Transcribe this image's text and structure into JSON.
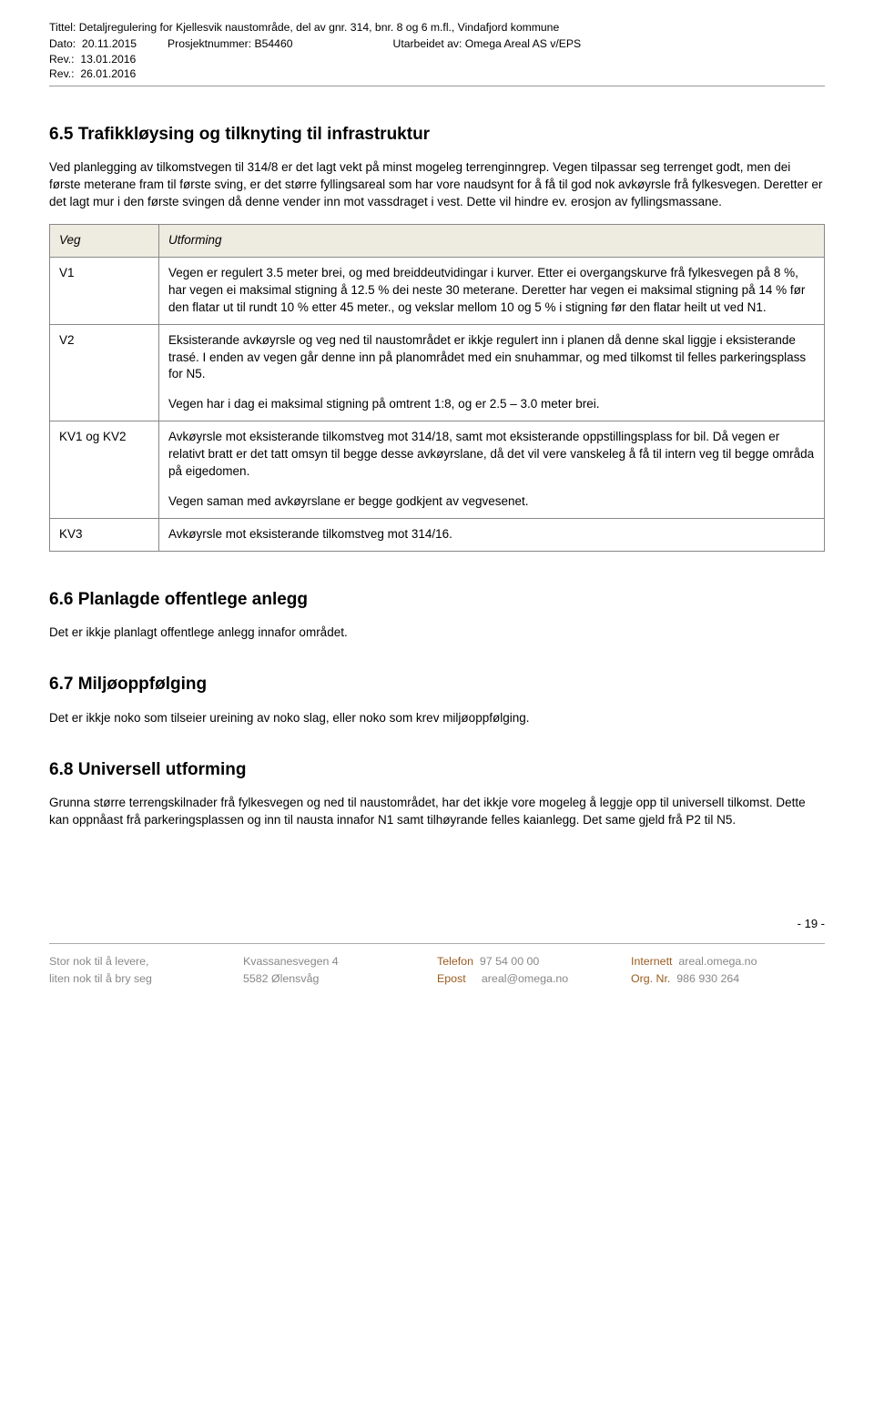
{
  "header": {
    "title_label": "Tittel:",
    "title_value": "Detaljregulering for Kjellesvik naustområde, del av gnr. 314, bnr. 8 og 6 m.fl., Vindafjord kommune",
    "date_label": "Dato:",
    "date_value": "20.11.2015",
    "rev1_label": "Rev.:",
    "rev1_value": "13.01.2016",
    "rev2_label": "Rev.:",
    "rev2_value": "26.01.2016",
    "proj_label": "Prosjektnummer:",
    "proj_value": "B54460",
    "by_label": "Utarbeidet av:",
    "by_value": "Omega Areal AS v/EPS"
  },
  "s65": {
    "heading": "6.5 Trafikkløysing og tilknyting til infrastruktur",
    "p1": "Ved planlegging av tilkomstvegen til 314/8 er det lagt vekt på minst mogeleg terrenginngrep. Vegen tilpassar seg terrenget godt, men dei første meterane fram til første sving, er det større fyllingsareal som har vore naudsynt for å få til god nok avkøyrsle frå fylkesvegen. Deretter er det lagt mur i den første svingen då denne vender inn mot vassdraget i vest. Dette vil hindre ev. erosjon av fyllingsmassane."
  },
  "table": {
    "head": {
      "c1": "Veg",
      "c2": "Utforming"
    },
    "rows": [
      {
        "c1": "V1",
        "c2": "Vegen er regulert 3.5 meter brei, og med breiddeutvidingar i kurver. Etter ei overgangskurve frå fylkesvegen på 8 %, har vegen ei maksimal stigning å 12.5 % dei neste 30 meterane. Deretter har vegen ei maksimal stigning på 14 % før den flatar ut til rundt 10 % etter 45 meter., og vekslar mellom 10 og 5 % i stigning før den flatar heilt ut ved N1."
      },
      {
        "c1": "V2",
        "c2a": "Eksisterande avkøyrsle og veg ned til naustområdet er ikkje regulert inn i planen då denne skal liggje i eksisterande trasé. I enden av vegen går denne inn på planområdet med ein snuhammar, og med tilkomst til felles parkeringsplass for N5.",
        "c2b": "Vegen har i dag ei maksimal stigning på omtrent 1:8, og er 2.5 – 3.0 meter brei."
      },
      {
        "c1": "KV1 og KV2",
        "c2a": "Avkøyrsle mot eksisterande tilkomstveg mot 314/18, samt mot eksisterande oppstillingsplass for bil. Då vegen er relativt bratt er det tatt omsyn til begge desse avkøyrslane, då det vil vere vanskeleg å få til intern veg til begge områda på eigedomen.",
        "c2b": "Vegen saman med avkøyrslane er begge godkjent av vegvesenet."
      },
      {
        "c1": "KV3",
        "c2": "Avkøyrsle mot eksisterande tilkomstveg mot 314/16."
      }
    ]
  },
  "s66": {
    "heading": "6.6 Planlagde offentlege anlegg",
    "p1": "Det er ikkje planlagt offentlege anlegg innafor området."
  },
  "s67": {
    "heading": "6.7 Miljøoppfølging",
    "p1": "Det er ikkje noko som tilseier ureining av noko slag, eller noko som krev miljøoppfølging."
  },
  "s68": {
    "heading": "6.8 Universell utforming",
    "p1": "Grunna større terrengskilnader frå fylkesvegen og ned til naustområdet, har det ikkje vore mogeleg å leggje opp til universell tilkomst. Dette kan oppnåast frå parkeringsplassen og inn til nausta innafor N1 samt tilhøyrande felles kaianlegg. Det same gjeld frå P2 til N5."
  },
  "page_num": "- 19 -",
  "footer": {
    "col1a": "Stor nok til å levere,",
    "col1b": "liten nok til å bry seg",
    "col2a": "Kvassanesvegen 4",
    "col2b": "5582 Ølensvåg",
    "col3a_label": "Telefon",
    "col3a_val": "97 54 00 00",
    "col3b_label": "Epost",
    "col3b_val": "areal@omega.no",
    "col4a_label": "Internett",
    "col4a_val": "areal.omega.no",
    "col4b_label": "Org. Nr.",
    "col4b_val": "986 930 264"
  }
}
